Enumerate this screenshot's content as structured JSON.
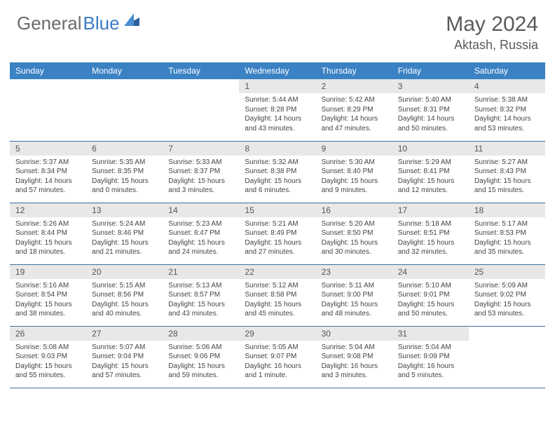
{
  "brand": {
    "part1": "General",
    "part2": "Blue"
  },
  "title": {
    "month": "May 2024",
    "location": "Aktash, Russia"
  },
  "colors": {
    "header_bg": "#3b82c4",
    "header_text": "#ffffff",
    "daynum_bg": "#e8e8e8",
    "border": "#3b6fa0",
    "brand_gray": "#6b6b6b",
    "brand_blue": "#3b7bc4"
  },
  "weekdays": [
    "Sunday",
    "Monday",
    "Tuesday",
    "Wednesday",
    "Thursday",
    "Friday",
    "Saturday"
  ],
  "weeks": [
    [
      null,
      null,
      null,
      {
        "d": "1",
        "sr": "Sunrise: 5:44 AM",
        "ss": "Sunset: 8:28 PM",
        "dl1": "Daylight: 14 hours",
        "dl2": "and 43 minutes."
      },
      {
        "d": "2",
        "sr": "Sunrise: 5:42 AM",
        "ss": "Sunset: 8:29 PM",
        "dl1": "Daylight: 14 hours",
        "dl2": "and 47 minutes."
      },
      {
        "d": "3",
        "sr": "Sunrise: 5:40 AM",
        "ss": "Sunset: 8:31 PM",
        "dl1": "Daylight: 14 hours",
        "dl2": "and 50 minutes."
      },
      {
        "d": "4",
        "sr": "Sunrise: 5:38 AM",
        "ss": "Sunset: 8:32 PM",
        "dl1": "Daylight: 14 hours",
        "dl2": "and 53 minutes."
      }
    ],
    [
      {
        "d": "5",
        "sr": "Sunrise: 5:37 AM",
        "ss": "Sunset: 8:34 PM",
        "dl1": "Daylight: 14 hours",
        "dl2": "and 57 minutes."
      },
      {
        "d": "6",
        "sr": "Sunrise: 5:35 AM",
        "ss": "Sunset: 8:35 PM",
        "dl1": "Daylight: 15 hours",
        "dl2": "and 0 minutes."
      },
      {
        "d": "7",
        "sr": "Sunrise: 5:33 AM",
        "ss": "Sunset: 8:37 PM",
        "dl1": "Daylight: 15 hours",
        "dl2": "and 3 minutes."
      },
      {
        "d": "8",
        "sr": "Sunrise: 5:32 AM",
        "ss": "Sunset: 8:38 PM",
        "dl1": "Daylight: 15 hours",
        "dl2": "and 6 minutes."
      },
      {
        "d": "9",
        "sr": "Sunrise: 5:30 AM",
        "ss": "Sunset: 8:40 PM",
        "dl1": "Daylight: 15 hours",
        "dl2": "and 9 minutes."
      },
      {
        "d": "10",
        "sr": "Sunrise: 5:29 AM",
        "ss": "Sunset: 8:41 PM",
        "dl1": "Daylight: 15 hours",
        "dl2": "and 12 minutes."
      },
      {
        "d": "11",
        "sr": "Sunrise: 5:27 AM",
        "ss": "Sunset: 8:43 PM",
        "dl1": "Daylight: 15 hours",
        "dl2": "and 15 minutes."
      }
    ],
    [
      {
        "d": "12",
        "sr": "Sunrise: 5:26 AM",
        "ss": "Sunset: 8:44 PM",
        "dl1": "Daylight: 15 hours",
        "dl2": "and 18 minutes."
      },
      {
        "d": "13",
        "sr": "Sunrise: 5:24 AM",
        "ss": "Sunset: 8:46 PM",
        "dl1": "Daylight: 15 hours",
        "dl2": "and 21 minutes."
      },
      {
        "d": "14",
        "sr": "Sunrise: 5:23 AM",
        "ss": "Sunset: 8:47 PM",
        "dl1": "Daylight: 15 hours",
        "dl2": "and 24 minutes."
      },
      {
        "d": "15",
        "sr": "Sunrise: 5:21 AM",
        "ss": "Sunset: 8:49 PM",
        "dl1": "Daylight: 15 hours",
        "dl2": "and 27 minutes."
      },
      {
        "d": "16",
        "sr": "Sunrise: 5:20 AM",
        "ss": "Sunset: 8:50 PM",
        "dl1": "Daylight: 15 hours",
        "dl2": "and 30 minutes."
      },
      {
        "d": "17",
        "sr": "Sunrise: 5:18 AM",
        "ss": "Sunset: 8:51 PM",
        "dl1": "Daylight: 15 hours",
        "dl2": "and 32 minutes."
      },
      {
        "d": "18",
        "sr": "Sunrise: 5:17 AM",
        "ss": "Sunset: 8:53 PM",
        "dl1": "Daylight: 15 hours",
        "dl2": "and 35 minutes."
      }
    ],
    [
      {
        "d": "19",
        "sr": "Sunrise: 5:16 AM",
        "ss": "Sunset: 8:54 PM",
        "dl1": "Daylight: 15 hours",
        "dl2": "and 38 minutes."
      },
      {
        "d": "20",
        "sr": "Sunrise: 5:15 AM",
        "ss": "Sunset: 8:56 PM",
        "dl1": "Daylight: 15 hours",
        "dl2": "and 40 minutes."
      },
      {
        "d": "21",
        "sr": "Sunrise: 5:13 AM",
        "ss": "Sunset: 8:57 PM",
        "dl1": "Daylight: 15 hours",
        "dl2": "and 43 minutes."
      },
      {
        "d": "22",
        "sr": "Sunrise: 5:12 AM",
        "ss": "Sunset: 8:58 PM",
        "dl1": "Daylight: 15 hours",
        "dl2": "and 45 minutes."
      },
      {
        "d": "23",
        "sr": "Sunrise: 5:11 AM",
        "ss": "Sunset: 9:00 PM",
        "dl1": "Daylight: 15 hours",
        "dl2": "and 48 minutes."
      },
      {
        "d": "24",
        "sr": "Sunrise: 5:10 AM",
        "ss": "Sunset: 9:01 PM",
        "dl1": "Daylight: 15 hours",
        "dl2": "and 50 minutes."
      },
      {
        "d": "25",
        "sr": "Sunrise: 5:09 AM",
        "ss": "Sunset: 9:02 PM",
        "dl1": "Daylight: 15 hours",
        "dl2": "and 53 minutes."
      }
    ],
    [
      {
        "d": "26",
        "sr": "Sunrise: 5:08 AM",
        "ss": "Sunset: 9:03 PM",
        "dl1": "Daylight: 15 hours",
        "dl2": "and 55 minutes."
      },
      {
        "d": "27",
        "sr": "Sunrise: 5:07 AM",
        "ss": "Sunset: 9:04 PM",
        "dl1": "Daylight: 15 hours",
        "dl2": "and 57 minutes."
      },
      {
        "d": "28",
        "sr": "Sunrise: 5:06 AM",
        "ss": "Sunset: 9:06 PM",
        "dl1": "Daylight: 15 hours",
        "dl2": "and 59 minutes."
      },
      {
        "d": "29",
        "sr": "Sunrise: 5:05 AM",
        "ss": "Sunset: 9:07 PM",
        "dl1": "Daylight: 16 hours",
        "dl2": "and 1 minute."
      },
      {
        "d": "30",
        "sr": "Sunrise: 5:04 AM",
        "ss": "Sunset: 9:08 PM",
        "dl1": "Daylight: 16 hours",
        "dl2": "and 3 minutes."
      },
      {
        "d": "31",
        "sr": "Sunrise: 5:04 AM",
        "ss": "Sunset: 9:09 PM",
        "dl1": "Daylight: 16 hours",
        "dl2": "and 5 minutes."
      },
      null
    ]
  ]
}
